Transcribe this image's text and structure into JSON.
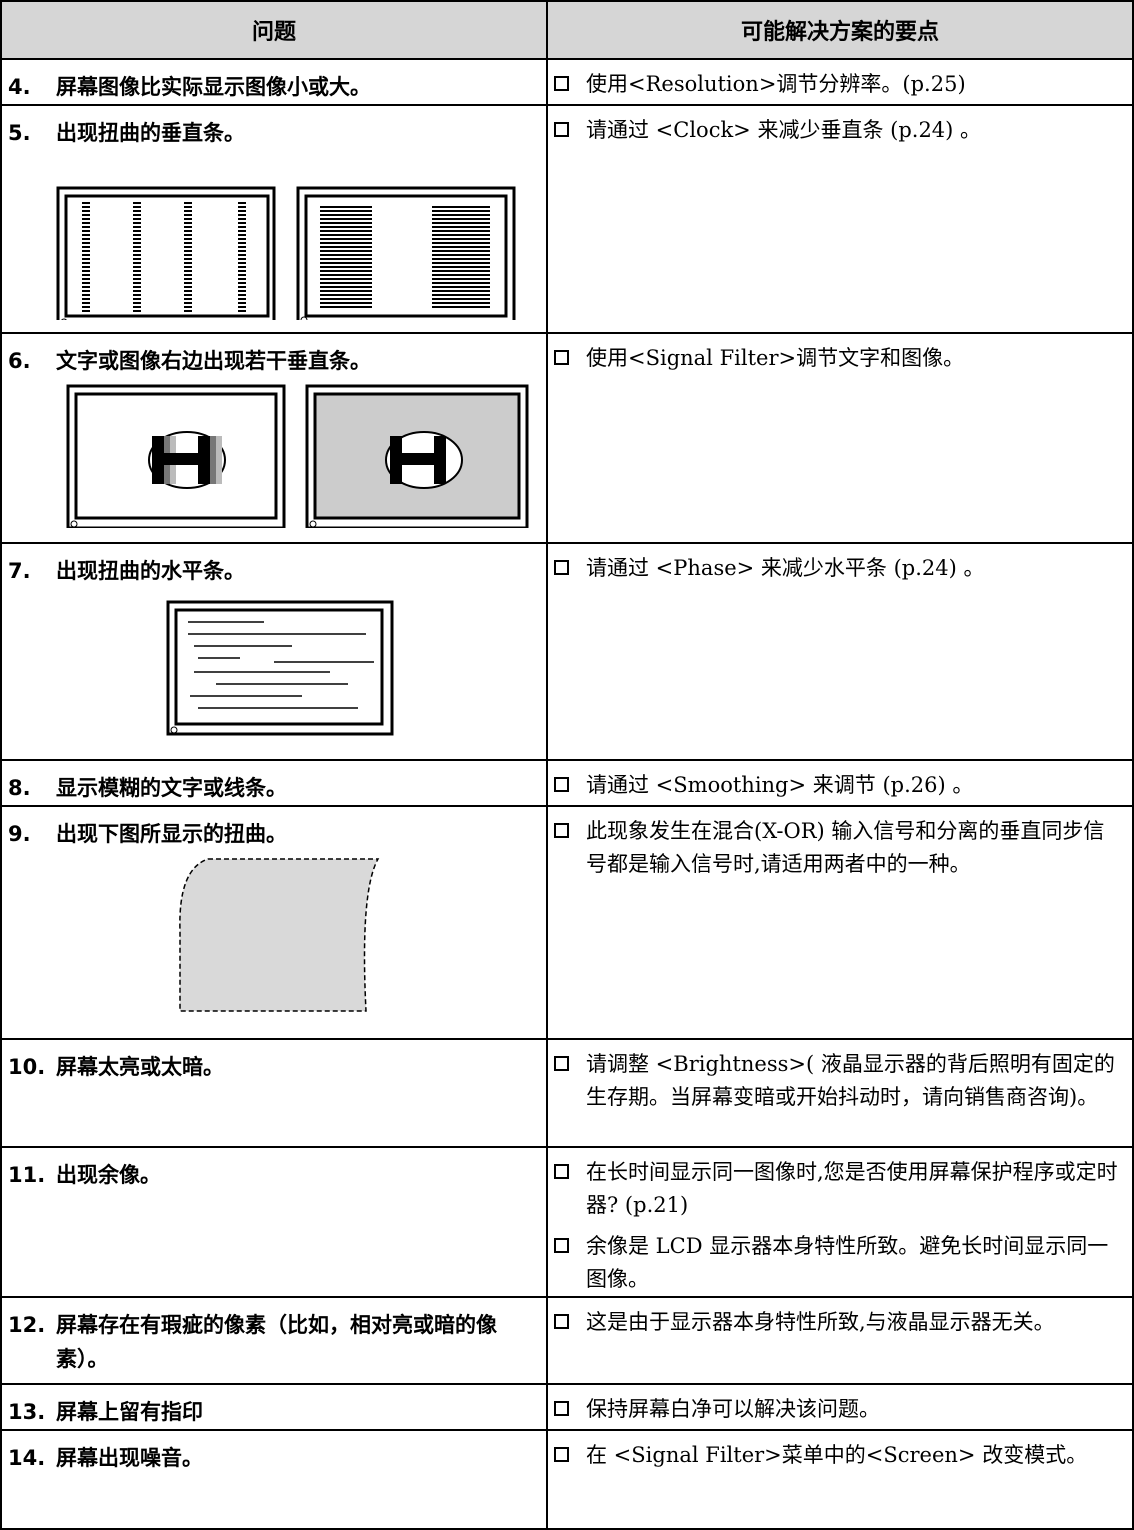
{
  "table": {
    "header": [
      "问题",
      "可能解决方案的要点"
    ],
    "rows": [
      {
        "number": "4.",
        "problem": "屏幕图像比实际显示图像小或大。",
        "solutions": [
          "使用<Resolution>调节分辨率。(p.25)"
        ]
      },
      {
        "number": "5.",
        "problem": "出现扭曲的垂直条。",
        "solutions": [
          "请通过 <Clock> 来减少垂直条 (p.24) 。"
        ]
      },
      {
        "number": "6.",
        "problem": "文字或图像右边出现若干垂直条。",
        "solutions": [
          "使用<Signal Filter>调节文字和图像。"
        ]
      },
      {
        "number": "7.",
        "problem": "出现扭曲的水平条。",
        "solutions": [
          "请通过 <Phase> 来减少水平条 (p.24) 。"
        ]
      },
      {
        "number": "8.",
        "problem": "显示模糊的文字或线条。",
        "solutions": [
          "请通过 <Smoothing> 来调节 (p.26) 。"
        ]
      },
      {
        "number": "9.",
        "problem": "出现下图所显示的扭曲。",
        "solutions": [
          "此现象发生在混合(X-OR) 输入信号和分离的垂直同步信号都是输入信号时,请适用两者中的一种。"
        ]
      },
      {
        "number": "10.",
        "problem": "屏幕太亮或太暗。",
        "solutions": [
          "请调整 <Brightness>( 液晶显示器的背后照明有固定的生存期。当屏幕变暗或开始抖动时，请向销售商咨询)。"
        ]
      },
      {
        "number": "11.",
        "problem": "出现余像。",
        "solutions": [
          "在长时间显示同一图像时,您是否使用屏幕保护程序或定时器? (p.21)",
          "余像是 LCD 显示器本身特性所致。避免长时间显示同一图像。"
        ]
      },
      {
        "number": "12.",
        "problem": "屏幕存在有瑕疵的像素（比如，相对亮或暗的像素）。",
        "solutions": [
          "这是由于显示器本身特性所致,与液晶显示器无关。"
        ]
      },
      {
        "number": "13.",
        "problem": "屏幕上留有指印",
        "solutions": [
          "保持屏幕白净可以解决该问题。"
        ]
      },
      {
        "number": "14.",
        "problem": "屏幕出现噪音。",
        "solutions": [
          "在 <Signal Filter>菜单中的<Screen> 改变模式。"
        ]
      }
    ]
  }
}
